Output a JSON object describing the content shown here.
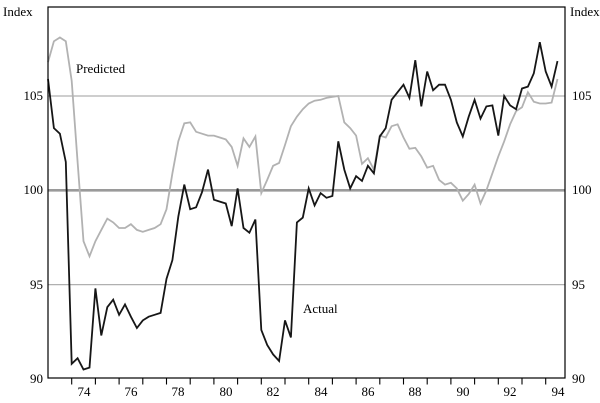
{
  "chart_data": {
    "type": "line",
    "title": "",
    "axis_label_left": "Index",
    "axis_label_right": "Index",
    "ylim": [
      90,
      109.6
    ],
    "xlim": [
      1973.0,
      1994.8
    ],
    "grid": "horizontal",
    "y_ticks": [
      105,
      100,
      95,
      90
    ],
    "gridline_values": [
      105,
      100,
      95
    ],
    "thick_gridline_value": 100,
    "x_tick_years": [
      1974,
      1975,
      1976,
      1977,
      1978,
      1979,
      1980,
      1981,
      1982,
      1983,
      1984,
      1985,
      1986,
      1987,
      1988,
      1989,
      1990,
      1991,
      1992,
      1993,
      1994
    ],
    "x_tick_labels": [
      {
        "year": 1974,
        "label": "74"
      },
      {
        "year": 1976,
        "label": "76"
      },
      {
        "year": 1978,
        "label": "78"
      },
      {
        "year": 1980,
        "label": "80"
      },
      {
        "year": 1982,
        "label": "82"
      },
      {
        "year": 1984,
        "label": "84"
      },
      {
        "year": 1986,
        "label": "86"
      },
      {
        "year": 1988,
        "label": "88"
      },
      {
        "year": 1990,
        "label": "90"
      },
      {
        "year": 1992,
        "label": "92"
      },
      {
        "year": 1994,
        "label": "94"
      }
    ],
    "x_start": 1973.0,
    "x_step": 0.25,
    "series": [
      {
        "name": "Predicted",
        "color": "#b2b2b2",
        "values": [
          106.8,
          107.9,
          108.1,
          107.9,
          105.8,
          101.5,
          97.3,
          96.5,
          97.3,
          97.9,
          98.5,
          98.3,
          98.0,
          98.0,
          98.2,
          97.9,
          97.8,
          97.9,
          98.0,
          98.2,
          99.0,
          100.9,
          102.6,
          103.55,
          103.6,
          103.1,
          103.0,
          102.9,
          102.9,
          102.8,
          102.7,
          102.3,
          101.3,
          102.75,
          102.3,
          102.85,
          99.85,
          100.55,
          101.3,
          101.45,
          102.4,
          103.4,
          103.9,
          104.3,
          104.6,
          104.75,
          104.8,
          104.9,
          104.95,
          105.0,
          103.6,
          103.3,
          102.9,
          101.4,
          101.7,
          101.1,
          102.9,
          102.8,
          103.4,
          103.5,
          102.8,
          102.2,
          102.25,
          101.8,
          101.2,
          101.3,
          100.55,
          100.3,
          100.4,
          100.1,
          99.45,
          99.8,
          100.3,
          99.3,
          100.0,
          100.9,
          101.8,
          102.6,
          103.5,
          104.2,
          104.4,
          105.2,
          104.7,
          104.6,
          104.6,
          104.65,
          105.9
        ]
      },
      {
        "name": "Actual",
        "color": "#161616",
        "values": [
          105.9,
          103.3,
          103.0,
          101.5,
          90.8,
          91.1,
          90.5,
          90.6,
          94.8,
          92.3,
          93.8,
          94.2,
          93.4,
          93.95,
          93.3,
          92.7,
          93.1,
          93.3,
          93.4,
          93.5,
          95.3,
          96.3,
          98.6,
          100.3,
          99.0,
          99.1,
          99.9,
          101.1,
          99.5,
          99.4,
          99.3,
          98.1,
          100.1,
          98.0,
          97.75,
          98.45,
          92.6,
          91.8,
          91.3,
          90.95,
          93.1,
          92.2,
          98.3,
          98.55,
          100.1,
          99.2,
          99.85,
          99.6,
          99.7,
          102.6,
          101.1,
          100.1,
          100.75,
          100.5,
          101.3,
          100.9,
          102.85,
          103.3,
          104.8,
          105.2,
          105.6,
          104.9,
          106.9,
          104.45,
          106.3,
          105.3,
          105.6,
          105.6,
          104.8,
          103.6,
          102.85,
          103.9,
          104.8,
          103.8,
          104.45,
          104.5,
          102.9,
          105.0,
          104.5,
          104.3,
          105.4,
          105.5,
          106.2,
          107.85,
          106.3,
          105.5,
          106.85
        ]
      }
    ],
    "annotations": {
      "predicted": {
        "text": "Predicted"
      },
      "actual": {
        "text": "Actual"
      }
    },
    "colors": {
      "frame": "#000000",
      "grid_thin": "#b0b0b0",
      "grid_thick": "#9a9a9a",
      "background": "#ffffff"
    }
  }
}
